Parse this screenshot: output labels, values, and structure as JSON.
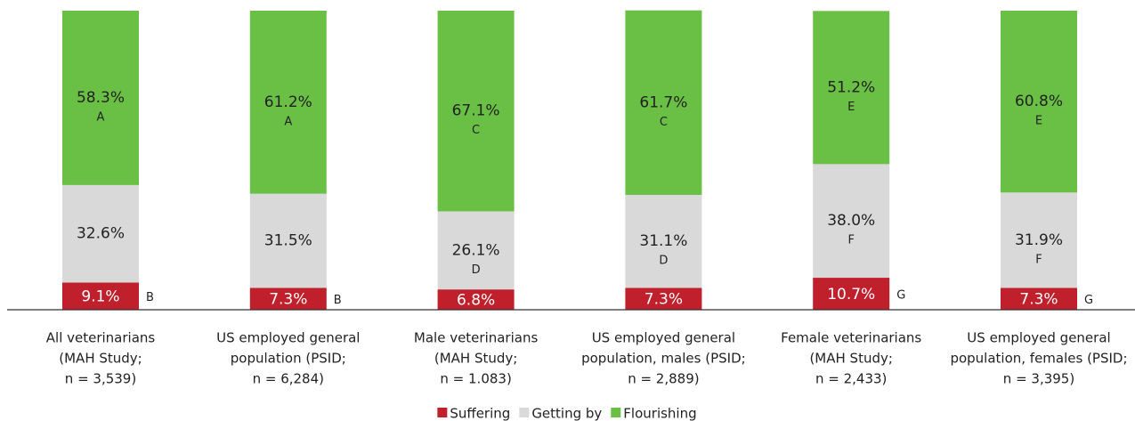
{
  "chart_data": {
    "type": "stacked_bar",
    "categories": [
      [
        "All veterinarians",
        "(MAH Study;",
        "n = 3,539)"
      ],
      [
        "US employed general",
        "population (PSID;",
        "n = 6,284)"
      ],
      [
        "Male veterinarians",
        "(MAH  Study;",
        "n = 1.083)"
      ],
      [
        "US employed general",
        "population, males (PSID;",
        "n = 2,889)"
      ],
      [
        "Female veterinarians",
        "(MAH  Study;",
        "n = 2,433)"
      ],
      [
        "US employed general",
        "population, females (PSID;",
        "n = 3,395)"
      ]
    ],
    "ylim": [
      0,
      100
    ],
    "series": [
      {
        "name": "Suffering",
        "color": "#c0202b",
        "values": [
          9.1,
          7.3,
          6.8,
          7.3,
          10.7,
          7.3
        ],
        "value_labels": [
          "9.1%",
          "7.3%",
          "6.8%",
          "7.3%",
          "10.7%",
          "7.3%"
        ],
        "letters": [
          "B",
          "B",
          null,
          null,
          "G",
          "G"
        ]
      },
      {
        "name": "Getting by",
        "color": "#d9d9d9",
        "values": [
          32.6,
          31.5,
          26.1,
          31.1,
          38.0,
          31.9
        ],
        "value_labels": [
          "32.6%",
          "31.5%",
          "26.1%",
          "31.1%",
          "38.0%",
          "31.9%"
        ],
        "letters": [
          null,
          null,
          "D",
          "D",
          "F",
          "F"
        ]
      },
      {
        "name": "Flourishing",
        "color": "#6abf45",
        "values": [
          58.3,
          61.2,
          67.1,
          61.7,
          51.2,
          60.8
        ],
        "value_labels": [
          "58.3%",
          "61.2%",
          "67.1%",
          "61.7%",
          "51.2%",
          "60.8%"
        ],
        "letters": [
          "A",
          "A",
          "C",
          "C",
          "E",
          "E"
        ]
      }
    ],
    "legend": "bottom"
  }
}
